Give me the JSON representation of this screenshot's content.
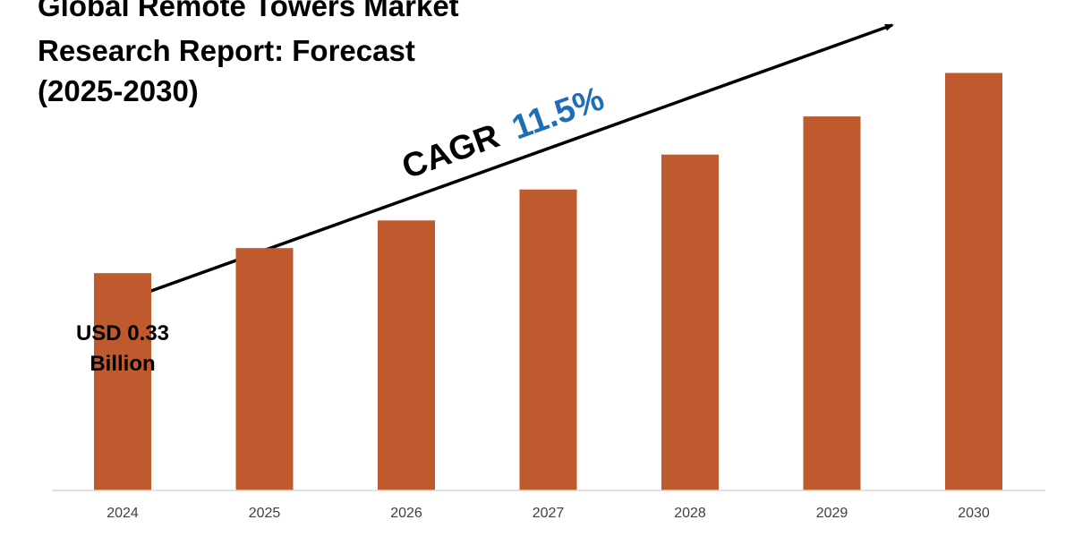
{
  "chart_data": {
    "type": "bar",
    "title_lines": [
      "Global Remote Towers Market",
      "Research Report: Forecast",
      "(2025-2030)"
    ],
    "categories": [
      "2024",
      "2025",
      "2026",
      "2027",
      "2028",
      "2029",
      "2030"
    ],
    "values": [
      0.33,
      0.368,
      0.41,
      0.457,
      0.51,
      0.568,
      0.634
    ],
    "ylim": [
      0,
      0.67
    ],
    "xlabel": "",
    "ylabel": "",
    "grid": false,
    "legend": "none",
    "annotations": {
      "first_bar_label_line1": "USD 0.33",
      "first_bar_label_line2": "Billion",
      "cagr_prefix": "CAGR",
      "cagr_value": "11.5%"
    },
    "colors": {
      "bar": "#bf5a2e",
      "cagr_value": "#1f6eb5",
      "axis": "#d9d9d9",
      "arrow": "#000000"
    }
  }
}
